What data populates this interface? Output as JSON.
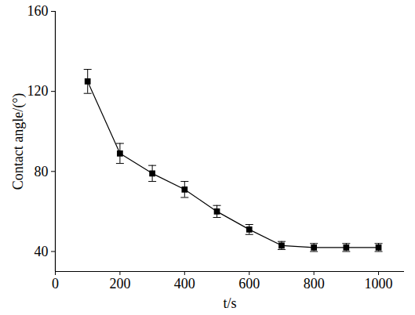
{
  "chart_data": {
    "type": "line",
    "x_label": "t/s",
    "y_label": "Contact angle/(°)",
    "x": [
      100,
      200,
      300,
      400,
      500,
      600,
      700,
      800,
      900,
      1000
    ],
    "values": [
      125,
      89,
      79,
      71,
      60,
      51,
      43,
      42,
      42,
      42
    ],
    "errors": [
      6,
      5,
      4,
      4,
      3,
      2.5,
      2,
      2,
      2,
      2
    ],
    "color": "#000000",
    "marker": "square",
    "line_style": "solid",
    "xlim": [
      0,
      1080
    ],
    "xticks": [
      0,
      200,
      400,
      600,
      800,
      1000
    ],
    "ylim": [
      30,
      160
    ],
    "yticks": [
      40,
      80,
      120,
      160
    ],
    "grid": false
  }
}
